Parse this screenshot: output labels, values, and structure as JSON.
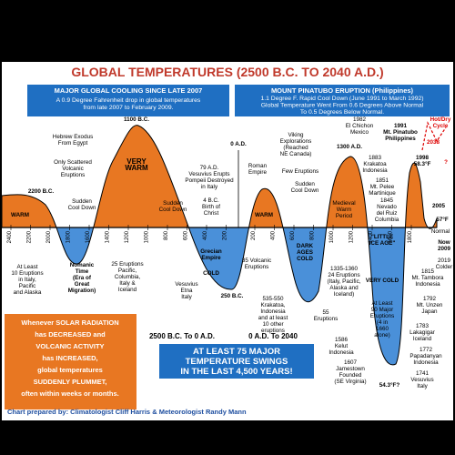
{
  "title": "GLOBAL TEMPERATURES (2500 B.C. TO 2040 A.D.)",
  "left_box": {
    "heading": "MAJOR GLOBAL COOLING SINCE LATE 2007",
    "lines": [
      "A 0.9 Degree Fahrenheit drop in global temperatures",
      "from late 2007 to February 2009."
    ]
  },
  "right_box": {
    "heading": "MOUNT PINATUBO ERUPTION (Philippines)",
    "lines": [
      "1.1 Degree F. Rapid Cool Down (June 1991 to March 1992)",
      "Global Temperature Went From 0.6 Degrees Above Normal",
      "To 0.5 Degrees Below Normal."
    ]
  },
  "axis_labels": [
    "2400",
    "2200",
    "2000",
    "1800",
    "1600",
    "1400",
    "1200",
    "1000",
    "800",
    "600",
    "400",
    "200",
    "200",
    "400",
    "600",
    "800",
    "1000",
    "1200",
    "1400",
    "1600",
    "1800"
  ],
  "annotations": [
    [
      "1100 B.C."
    ],
    [
      "Hebrew Exodus",
      "From Egypt"
    ],
    [
      "Only Scattered",
      "Volcanic",
      "Eruptions"
    ],
    [
      "2200 B.C."
    ],
    [
      "WARM"
    ],
    [
      "Sudden",
      "Cool Down"
    ],
    [
      "VERY",
      "WARM"
    ],
    [
      "Sudden",
      "Cool Down"
    ],
    [
      "At Least",
      "10 Eruptions",
      "in Italy,",
      "Pacific",
      "and Alaska"
    ],
    [
      "Nomanic",
      "Time",
      "(Era of",
      "Great",
      "Migration)"
    ],
    [
      "25 Eruptions",
      "Pacific,",
      "Columbia,",
      "Italy &",
      "Iceland"
    ],
    [
      "79 A.D.",
      "Vesuvius Erupts",
      "Pompeii Destroyed",
      "in Italy"
    ],
    [
      "4 B.C.",
      "Birth of",
      "Christ"
    ],
    [
      "0 A.D."
    ],
    [
      "Roman",
      "Empire"
    ],
    [
      "WARM"
    ],
    [
      "Grecian",
      "Empire"
    ],
    [
      "COLD"
    ],
    [
      "Vesuvius",
      "Etna",
      "Italy"
    ],
    [
      "250 B.C."
    ],
    [
      "35 Volcanic",
      "Eruptions"
    ],
    [
      "535-550",
      "Krakatoa,",
      "Indonesia",
      "and at least",
      "10 other",
      "eruptions"
    ],
    [
      "Viking",
      "Explorations",
      "(Reached",
      "NE Canada)"
    ],
    [
      "Few Eruptions"
    ],
    [
      "Sudden",
      "Cool Down"
    ],
    [
      "DARK",
      "AGES",
      "COLD"
    ],
    [
      "55",
      "Eruptions"
    ],
    [
      "1300 A.D."
    ],
    [
      "Medieval",
      "Warm",
      "Period"
    ],
    [
      "1335-1360",
      "24 Eruptions",
      "(Italy, Pacific,",
      "Alaska and",
      "Iceland)"
    ],
    [
      "1982",
      "El Chichon",
      "Mexico"
    ],
    [
      "1883",
      "Krakatoa",
      "Indonesia"
    ],
    [
      "1851",
      "Mt. Pelee",
      "Martinique"
    ],
    [
      "1845",
      "Nevado",
      "del Ruiz",
      "Columbia"
    ],
    [
      "\"LITTLE",
      "ICE AGE\""
    ],
    [
      "VERY COLD"
    ],
    [
      "At Least",
      "90 Major",
      "Eruptions",
      "(4 in",
      "1660",
      "alone)"
    ],
    [
      "1586",
      "Kelut",
      "Indonesia"
    ],
    [
      "1607",
      "Jamestown",
      "Founded",
      "(SE Virginia)"
    ],
    [
      "54.3°F?"
    ],
    [
      "1991",
      "Mt. Pinatubo",
      "Philippines"
    ],
    [
      "1998",
      "58.3°F"
    ],
    [
      "2005"
    ],
    [
      "57°F"
    ],
    [
      "Normal"
    ],
    [
      "Now",
      "2009"
    ],
    [
      "2019",
      "Colder"
    ],
    [
      "1815",
      "Mt. Tambora",
      "Indonesia"
    ],
    [
      "1792",
      "Mt. Unzen",
      "Japan"
    ],
    [
      "1783",
      "Lakagigar",
      "Iceland"
    ],
    [
      "1772",
      "Papadanyan",
      "Indonesia"
    ],
    [
      "1741",
      "Vesuvius",
      "Italy"
    ],
    [
      "Hot/Dry",
      "Cycle"
    ],
    [
      "2038"
    ],
    [
      "?"
    ]
  ],
  "note_box": [
    "Whenever SOLAR RADIATION",
    "has DECREASED and",
    "VOLCANIC ACTIVITY",
    "has INCREASED,",
    "global temperatures",
    "SUDDENLY PLUMMET,",
    "often within weeks or months."
  ],
  "era_left": "2500 B.C. To 0 A.D.",
  "era_right": "0 A.D. To 2040",
  "swing_box": [
    "AT LEAST 75 MAJOR",
    "TEMPERATURE SWINGS",
    "IN THE LAST 4,500 YEARS!"
  ],
  "credit": "Chart prepared by: Climatologist Cliff Harris & Meteorologist Randy Mann"
}
